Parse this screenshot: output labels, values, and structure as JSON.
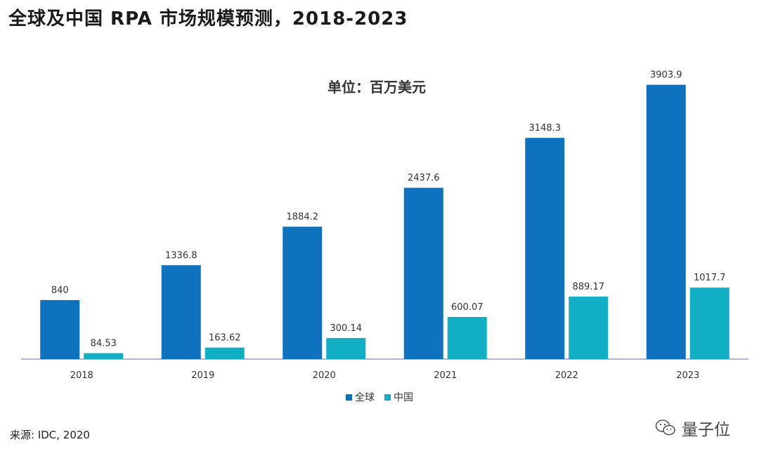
{
  "title": "全球及中国 RPA 市场规模预测，2018-2023",
  "source": "来源: IDC, 2020",
  "watermark": "量子位",
  "chart_data": {
    "type": "bar",
    "unit_label": "单位：百万美元",
    "categories": [
      "2018",
      "2019",
      "2020",
      "2021",
      "2022",
      "2023"
    ],
    "series": [
      {
        "name": "全球",
        "color": "#0e72bf",
        "values": [
          840,
          1336.8,
          1884.2,
          2437.6,
          3148.3,
          3903.9
        ],
        "labels": [
          "840",
          "1336.8",
          "1884.2",
          "2437.6",
          "3148.3",
          "3903.9"
        ]
      },
      {
        "name": "中国",
        "color": "#12aec4",
        "values": [
          84.53,
          163.62,
          300.14,
          600.07,
          889.17,
          1017.7
        ],
        "labels": [
          "84.53",
          "163.62",
          "300.14",
          "600.07",
          "889.17",
          "1017.7"
        ]
      }
    ],
    "ylim": [
      0,
      4000
    ],
    "grid": false,
    "legend": "bottom-center"
  }
}
